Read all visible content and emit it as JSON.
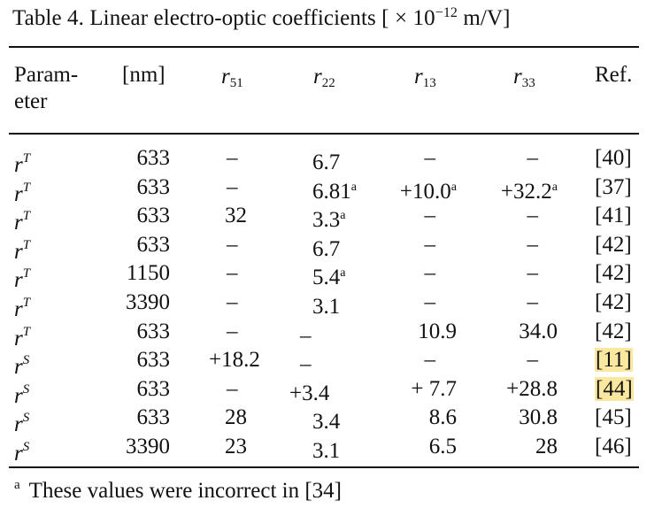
{
  "title": {
    "prefix": "Table 4. Linear electro-optic coefficients [ × 10",
    "exponent": "−12",
    "suffix": " m/V]"
  },
  "headers": {
    "param_line1": "Param-",
    "param_line2": "eter",
    "wavelength": "[nm]",
    "r51": "51",
    "r22": "22",
    "r13": "13",
    "r33": "33",
    "ref": "Ref."
  },
  "rows": [
    {
      "param": "T",
      "nm": "633",
      "r51": "–",
      "r22": "6.7",
      "r22_note": "",
      "r13": "–",
      "r13_note": "",
      "r33": "–",
      "r33_note": "",
      "ref": "[40]",
      "ref_highlight": false
    },
    {
      "param": "T",
      "nm": "633",
      "r51": "–",
      "r22": "6.81",
      "r22_note": "a",
      "r13": "+10.0",
      "r13_note": "a",
      "r33": "+32.2",
      "r33_note": "a",
      "ref": "[37]",
      "ref_highlight": false
    },
    {
      "param": "T",
      "nm": "633",
      "r51": "32",
      "r22": "3.3",
      "r22_note": "a",
      "r13": "–",
      "r13_note": "",
      "r33": "–",
      "r33_note": "",
      "ref": "[41]",
      "ref_highlight": false
    },
    {
      "param": "T",
      "nm": "633",
      "r51": "–",
      "r22": "6.7",
      "r22_note": "",
      "r13": "–",
      "r13_note": "",
      "r33": "–",
      "r33_note": "",
      "ref": "[42]",
      "ref_highlight": false
    },
    {
      "param": "T",
      "nm": "1150",
      "r51": "–",
      "r22": "5.4",
      "r22_note": "a",
      "r13": "–",
      "r13_note": "",
      "r33": "–",
      "r33_note": "",
      "ref": "[42]",
      "ref_highlight": false
    },
    {
      "param": "T",
      "nm": "3390",
      "r51": "–",
      "r22": "3.1",
      "r22_note": "",
      "r13": "–",
      "r13_note": "",
      "r33": "–",
      "r33_note": "",
      "ref": "[42]",
      "ref_highlight": false
    },
    {
      "param": "T",
      "nm": "633",
      "r51": "–",
      "r22": "–",
      "r22_note": "",
      "r13": "10.9",
      "r13_note": "",
      "r33": "34.0",
      "r33_note": "",
      "ref": "[42]",
      "ref_highlight": false
    },
    {
      "param": "S",
      "nm": "633",
      "r51": "+18.2",
      "r22": "–",
      "r22_note": "",
      "r13": "–",
      "r13_note": "",
      "r33": "–",
      "r33_note": "",
      "ref": "[11]",
      "ref_highlight": true
    },
    {
      "param": "S",
      "nm": "633",
      "r51": "–",
      "r22": "+3.4",
      "r22_note": "",
      "r13": "+  7.7",
      "r13_note": "",
      "r33": "+28.8",
      "r33_note": "",
      "ref": "[44]",
      "ref_highlight": true
    },
    {
      "param": "S",
      "nm": "633",
      "r51": "28",
      "r22": "3.4",
      "r22_note": "",
      "r13": "8.6",
      "r13_note": "",
      "r33": "30.8",
      "r33_note": "",
      "ref": "[45]",
      "ref_highlight": false
    },
    {
      "param": "S",
      "nm": "3390",
      "r51": "23",
      "r22": "3.1",
      "r22_note": "",
      "r13": "6.5",
      "r13_note": "",
      "r33": "28",
      "r33_note": "",
      "ref": "[46]",
      "ref_highlight": false
    }
  ],
  "footnote": {
    "mark": "a",
    "text": "These values were incorrect in [34]"
  }
}
